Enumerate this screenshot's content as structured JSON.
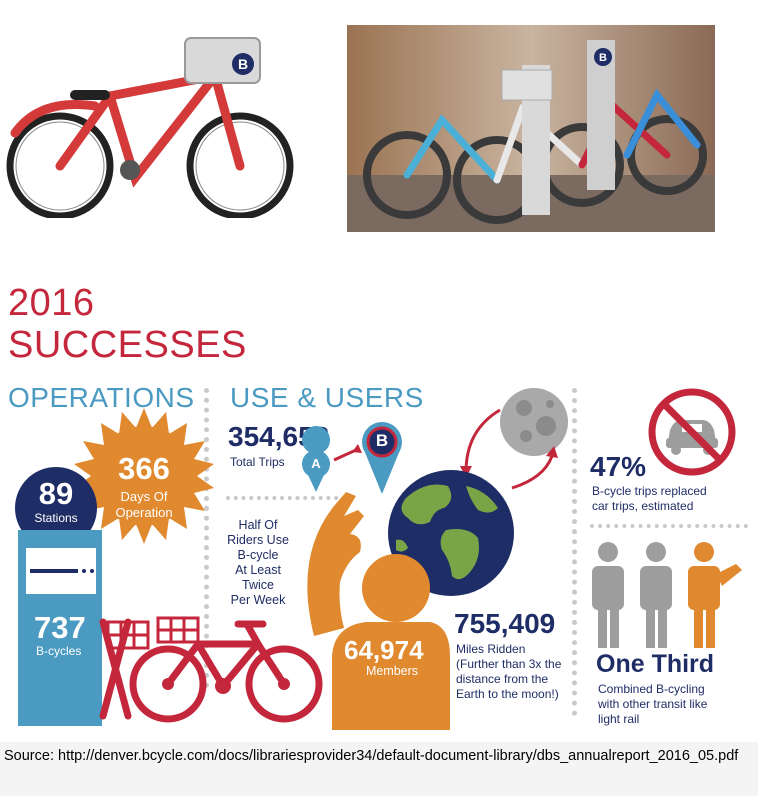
{
  "heading": {
    "year": "2016",
    "title": "SUCCESSES"
  },
  "sections": {
    "operations": "OPERATIONS",
    "use_users": "USE & USERS"
  },
  "stats": {
    "stations": {
      "value": "89",
      "label": "Stations"
    },
    "days": {
      "value": "366",
      "label_line1": "Days Of",
      "label_line2": "Operation"
    },
    "bcycles": {
      "value": "737",
      "label": "B-cycles"
    },
    "trips": {
      "value": "354,652",
      "label": "Total Trips"
    },
    "riders": {
      "lines": [
        "Half Of",
        "Riders Use",
        "B-cycle",
        "At Least",
        "Twice",
        "Per Week"
      ]
    },
    "members": {
      "value": "64,974",
      "label": "Members"
    },
    "miles": {
      "value": "755,409",
      "label": "Miles Ridden",
      "note_lines": [
        "(Further than 3x the",
        "distance from the",
        "Earth to the moon!)"
      ]
    },
    "replaced": {
      "value": "47%",
      "label_line1": "B-cycle trips replaced",
      "label_line2": "car trips, estimated"
    },
    "transit": {
      "value": "One Third",
      "label_lines": [
        "Combined B-cycling",
        "with other transit like",
        "light rail"
      ]
    }
  },
  "markers": {
    "a": "A",
    "b": "B"
  },
  "colors": {
    "red": "#c4273b",
    "navy": "#1f2d66",
    "blue": "#4a9ac2",
    "orange": "#e0892f",
    "gray": "#9d9d9d"
  },
  "source": "Source: http://denver.bcycle.com/docs/librariesprovider34/default-document-library/dbs_annualreport_2016_05.pdf"
}
